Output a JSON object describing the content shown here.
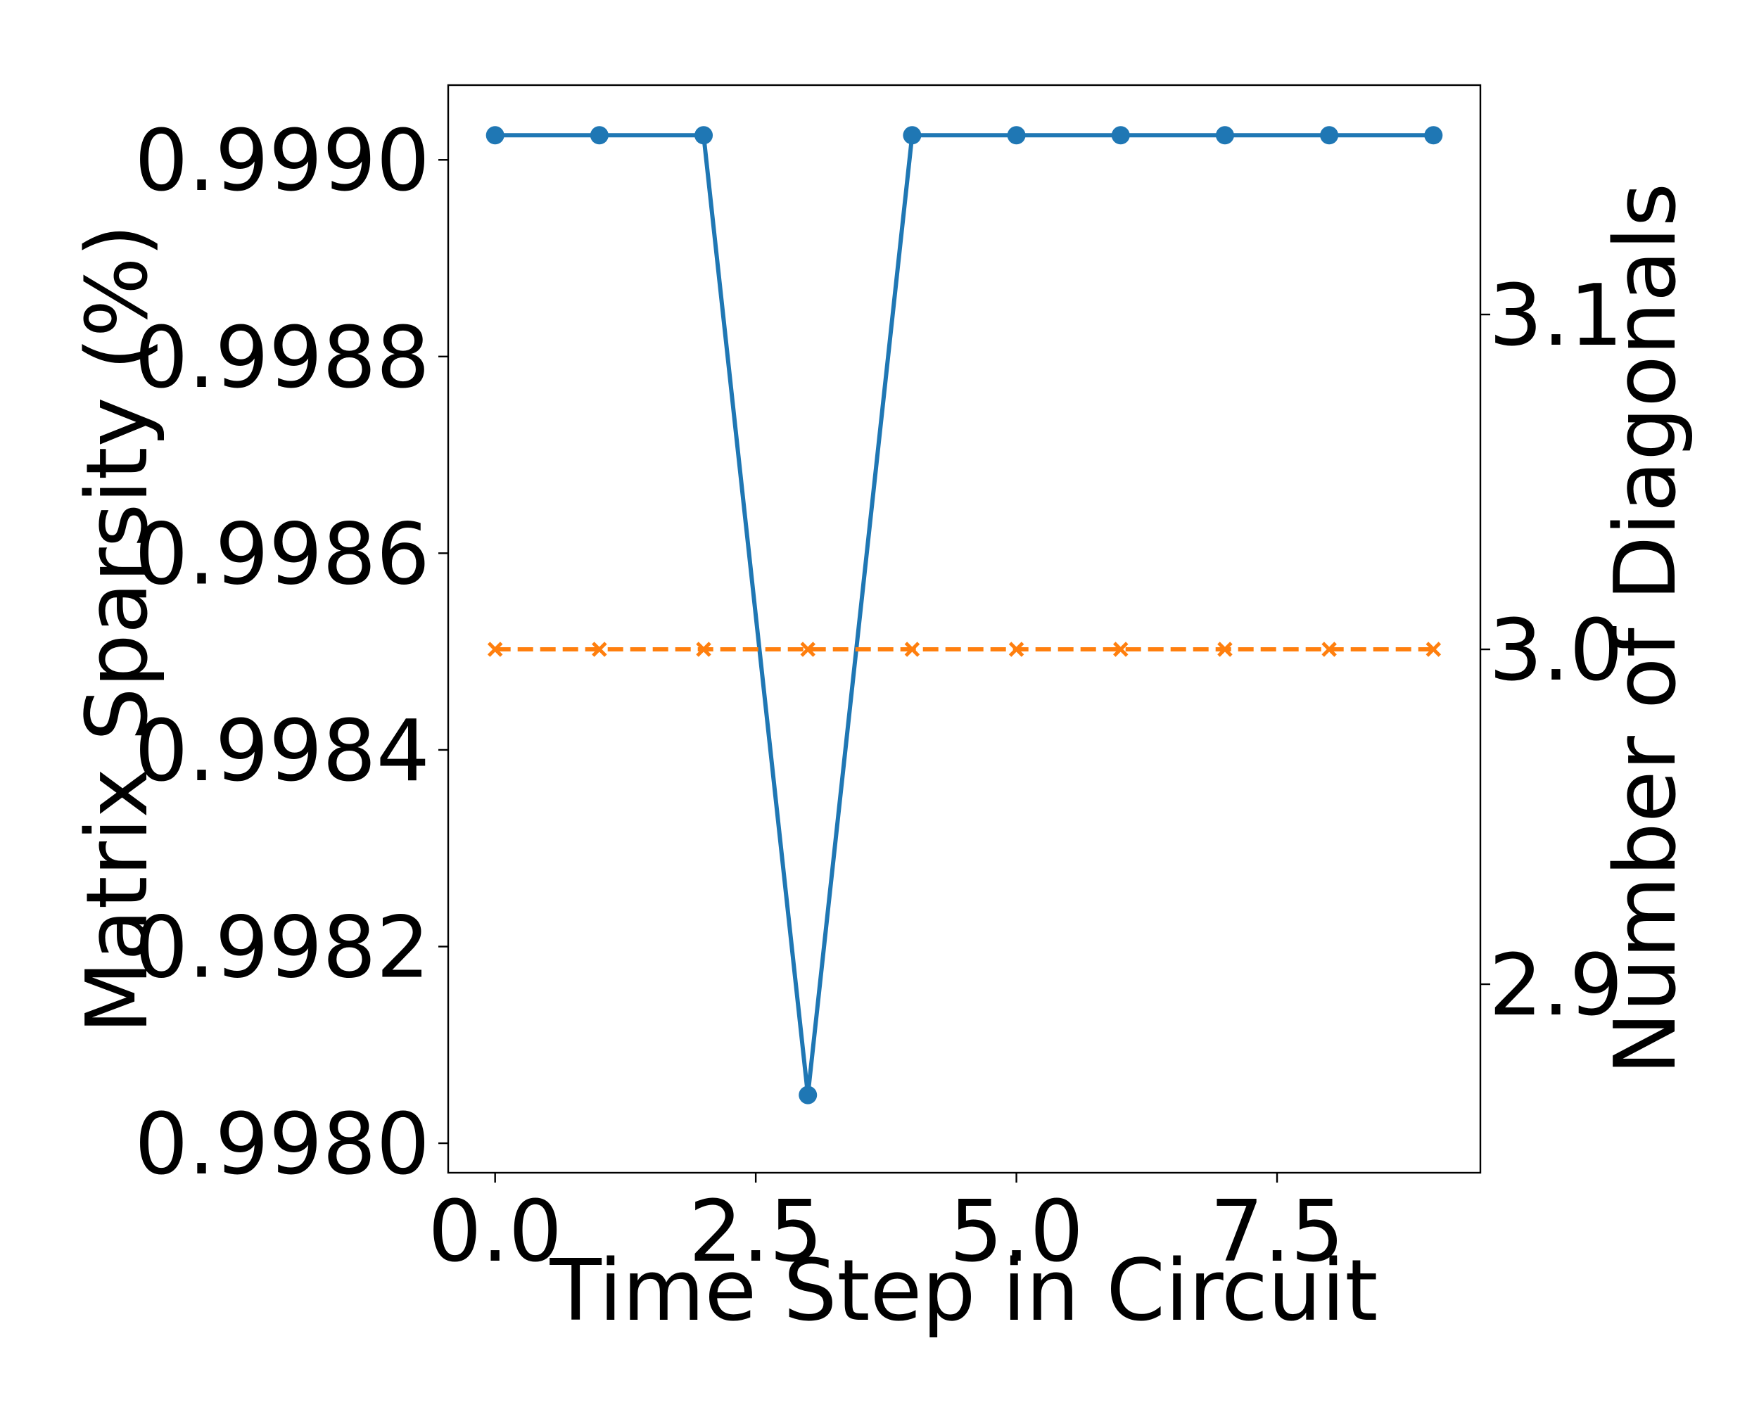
{
  "chart_data": {
    "type": "line",
    "xlabel": "Time Step in Circuit",
    "ylabel": "Matrix Sparsity (%)",
    "y2label": "Number of Diagonals",
    "xlim": [
      -0.45,
      9.45
    ],
    "ylim": [
      0.99797,
      0.999076
    ],
    "y2lim": [
      2.8437,
      3.1685
    ],
    "x_ticks": [
      {
        "value": 0.0,
        "label": "0.0"
      },
      {
        "value": 2.5,
        "label": "2.5"
      },
      {
        "value": 5.0,
        "label": "5.0"
      },
      {
        "value": 7.5,
        "label": "7.5"
      }
    ],
    "y_ticks": [
      {
        "value": 0.998,
        "label": "0.9980"
      },
      {
        "value": 0.9982,
        "label": "0.9982"
      },
      {
        "value": 0.9984,
        "label": "0.9984"
      },
      {
        "value": 0.9986,
        "label": "0.9986"
      },
      {
        "value": 0.9988,
        "label": "0.9988"
      },
      {
        "value": 0.999,
        "label": "0.9990"
      }
    ],
    "y2_ticks": [
      {
        "value": 2.9,
        "label": "2.9"
      },
      {
        "value": 3.0,
        "label": "3.0"
      },
      {
        "value": 3.1,
        "label": "3.1"
      }
    ],
    "grid": false,
    "legend": "none",
    "series": [
      {
        "axis": "left",
        "color": "#1f77b4",
        "marker": "circle",
        "linestyle": "solid",
        "x": [
          0,
          1,
          2,
          3,
          4,
          5,
          6,
          7,
          8,
          9
        ],
        "values": [
          0.999025,
          0.999025,
          0.999025,
          0.998049,
          0.999025,
          0.999025,
          0.999025,
          0.999025,
          0.999025,
          0.999025
        ]
      },
      {
        "axis": "right",
        "color": "#ff7f0e",
        "marker": "x",
        "linestyle": "dashed",
        "x": [
          0,
          1,
          2,
          3,
          4,
          5,
          6,
          7,
          8,
          9
        ],
        "values": [
          3.0,
          3.0,
          3.0,
          3.0,
          3.0,
          3.0,
          3.0,
          3.0,
          3.0,
          3.0
        ]
      }
    ]
  }
}
